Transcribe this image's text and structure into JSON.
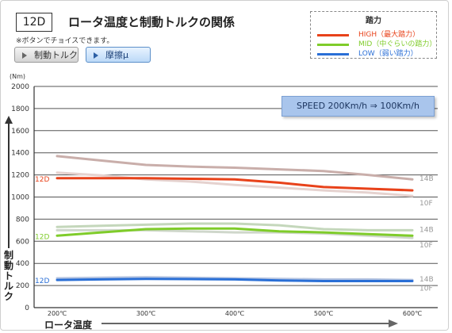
{
  "header": {
    "code": "12D",
    "title": "ロータ温度と制動トルクの関係",
    "note": "※ボタンでチョイスできます。"
  },
  "buttons": {
    "torque": "制動トルク",
    "friction": "摩擦μ"
  },
  "legend": {
    "title": "踏力",
    "items": [
      {
        "label": "HIGH（最大踏力）",
        "color": "#e8421a"
      },
      {
        "label": "MID（中ぐらいの踏力）",
        "color": "#7fcc2a"
      },
      {
        "label": "LOW（弱い踏力）",
        "color": "#2a6fd6"
      }
    ]
  },
  "speed_box": "SPEED  200Km/h ⇒ 100Km/h",
  "colors": {
    "high": "#e8421a",
    "mid": "#7fcc2a",
    "low": "#2a6fd6",
    "high_14b": "#c9aeaa",
    "high_10f": "#e5d2cf",
    "mid_14b": "#c4d7bb",
    "mid_10f": "#cfd7cb",
    "low_14b": "#b5c4e0"
  },
  "chart_data": {
    "type": "line",
    "xlabel": "ロータ温度",
    "ylabel": "制動トルク",
    "yunit": "(Nm)",
    "x_ticks": [
      "200℃",
      "300℃",
      "400℃",
      "500℃",
      "600℃"
    ],
    "y_ticks": [
      "0",
      "200",
      "400",
      "600",
      "800",
      "1000",
      "1200",
      "1400",
      "1600",
      "1800",
      "2000"
    ],
    "xlim": [
      200,
      600
    ],
    "ylim": [
      0,
      2000
    ],
    "series_labels": {
      "high": "12D",
      "mid": "12D",
      "low": "12D",
      "b14": "14B",
      "f10": "10F"
    },
    "series": [
      {
        "group": "high",
        "variant": "14B",
        "x": [
          200,
          250,
          300,
          350,
          400,
          450,
          500,
          550,
          600
        ],
        "values": [
          1370,
          1330,
          1290,
          1275,
          1265,
          1250,
          1235,
          1200,
          1160
        ]
      },
      {
        "group": "high",
        "variant": "10F",
        "x": [
          200,
          250,
          300,
          350,
          400,
          450,
          500,
          550,
          600
        ],
        "values": [
          1220,
          1195,
          1160,
          1140,
          1110,
          1085,
          1060,
          1040,
          1010
        ]
      },
      {
        "group": "high",
        "variant": "12D",
        "x": [
          200,
          250,
          300,
          350,
          400,
          450,
          500,
          550,
          600
        ],
        "values": [
          1170,
          1170,
          1170,
          1165,
          1160,
          1130,
          1090,
          1075,
          1060
        ]
      },
      {
        "group": "mid",
        "variant": "14B",
        "x": [
          200,
          250,
          300,
          350,
          400,
          450,
          500,
          550,
          600
        ],
        "values": [
          730,
          740,
          750,
          760,
          760,
          745,
          710,
          700,
          700
        ]
      },
      {
        "group": "mid",
        "variant": "10F",
        "x": [
          200,
          250,
          300,
          350,
          400,
          450,
          500,
          550,
          600
        ],
        "values": [
          700,
          700,
          700,
          690,
          680,
          680,
          670,
          650,
          630
        ]
      },
      {
        "group": "mid",
        "variant": "12D",
        "x": [
          200,
          250,
          300,
          350,
          400,
          450,
          500,
          550,
          600
        ],
        "values": [
          650,
          680,
          710,
          715,
          715,
          690,
          680,
          665,
          650
        ]
      },
      {
        "group": "low",
        "variant": "14B",
        "x": [
          200,
          250,
          300,
          350,
          400,
          450,
          500,
          550,
          600
        ],
        "values": [
          265,
          270,
          275,
          270,
          265,
          260,
          255,
          255,
          250
        ]
      },
      {
        "group": "low",
        "variant": "12D",
        "x": [
          200,
          250,
          300,
          350,
          400,
          450,
          500,
          550,
          600
        ],
        "values": [
          250,
          255,
          260,
          258,
          255,
          245,
          240,
          240,
          240
        ]
      }
    ]
  }
}
